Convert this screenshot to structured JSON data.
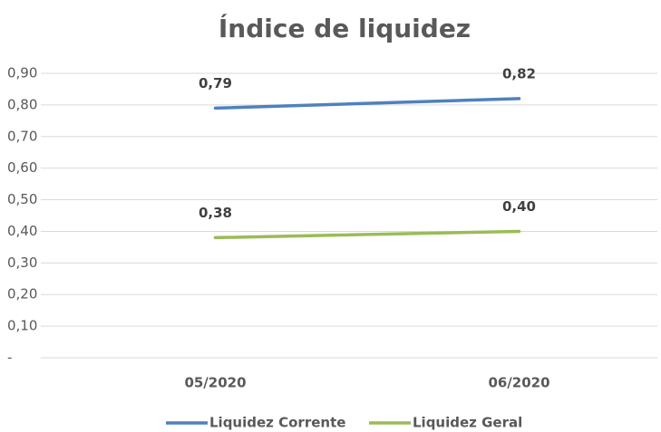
{
  "chart_data": {
    "type": "line",
    "title": "Índice de liquidez",
    "categories": [
      "05/2020",
      "06/2020"
    ],
    "series": [
      {
        "name": "Liquidez Corrente",
        "color": "#4f81bd",
        "values": [
          0.79,
          0.82
        ],
        "value_labels": [
          "0,79",
          "0,82"
        ]
      },
      {
        "name": "Liquidez Geral",
        "color": "#9bbb59",
        "values": [
          0.38,
          0.4
        ],
        "value_labels": [
          "0,38",
          "0,40"
        ]
      }
    ],
    "ylim": [
      0,
      0.9
    ],
    "yticks": [
      {
        "value": 0,
        "label": "-"
      },
      {
        "value": 0.1,
        "label": "0,10"
      },
      {
        "value": 0.2,
        "label": "0,20"
      },
      {
        "value": 0.3,
        "label": "0,30"
      },
      {
        "value": 0.4,
        "label": "0,40"
      },
      {
        "value": 0.5,
        "label": "0,50"
      },
      {
        "value": 0.6,
        "label": "0,60"
      },
      {
        "value": 0.7,
        "label": "0,70"
      },
      {
        "value": 0.8,
        "label": "0,80"
      },
      {
        "value": 0.9,
        "label": "0,90"
      }
    ],
    "grid": true,
    "legend": "bottom"
  }
}
